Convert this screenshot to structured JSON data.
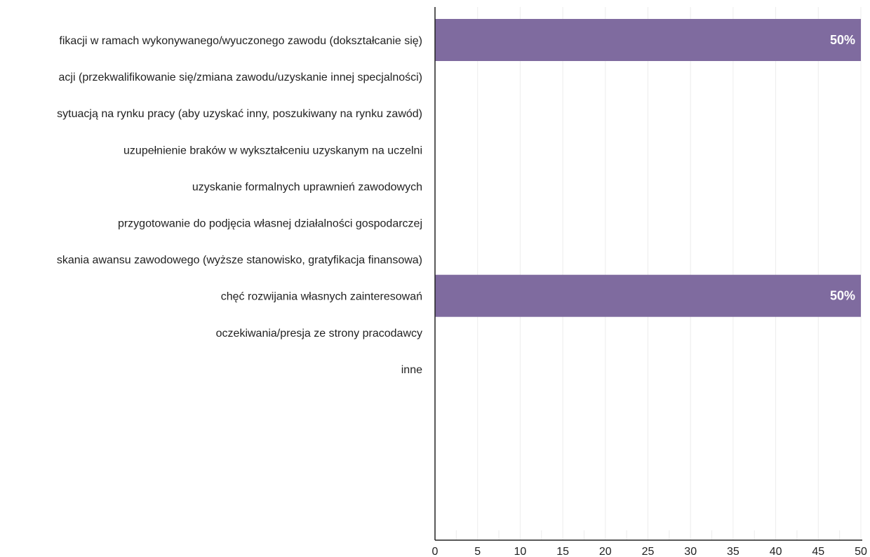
{
  "chart_data": {
    "type": "bar",
    "orientation": "horizontal",
    "categories": [
      "fikacji w ramach wykonywanego/wyuczonego zawodu (dokształcanie się)",
      "acji (przekwalifikowanie się/zmiana zawodu/uzyskanie innej specjalności)",
      "sytuacją na rynku pracy (aby uzyskać inny, poszukiwany na rynku zawód)",
      "uzupełnienie braków w wykształceniu uzyskanym na uczelni",
      "uzyskanie formalnych uprawnień zawodowych",
      "przygotowanie do podjęcia własnej działalności gospodarczej",
      "skania awansu zawodowego (wyższe stanowisko, gratyfikacja finansowa)",
      "chęć rozwijania własnych zainteresowań",
      "oczekiwania/presja ze strony pracodawcy",
      "inne"
    ],
    "values": [
      50,
      0,
      0,
      0,
      0,
      0,
      0,
      50,
      0,
      0
    ],
    "value_labels": [
      "50%",
      "",
      "",
      "",
      "",
      "",
      "",
      "50%",
      "",
      ""
    ],
    "xlim": [
      0,
      50
    ],
    "xticks": [
      "0",
      "5",
      "10",
      "15",
      "20",
      "25",
      "30",
      "35",
      "40",
      "45",
      "50"
    ],
    "grid": true,
    "colors": {
      "bar": "#7f6b9f",
      "axis": "#222222",
      "grid": "#ececec"
    }
  }
}
